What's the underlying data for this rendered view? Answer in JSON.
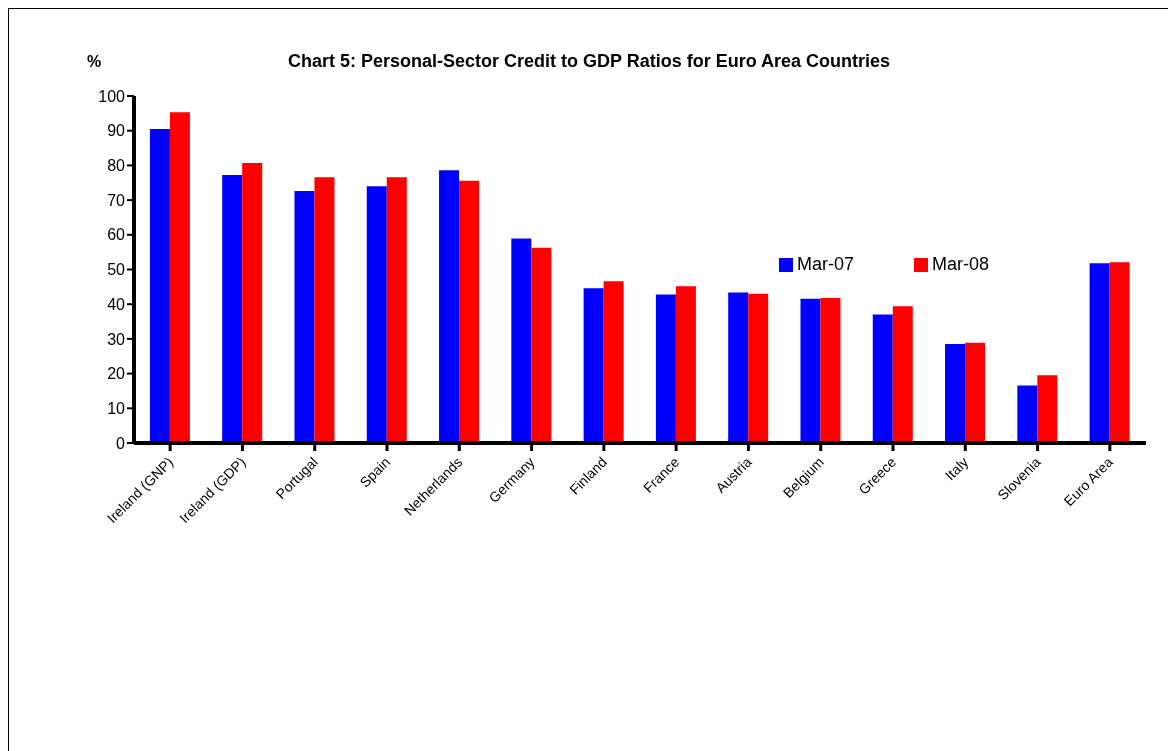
{
  "chart_data": {
    "type": "bar",
    "title": "Chart 5: Personal-Sector Credit to GDP Ratios for Euro Area Countries",
    "ylabel": "%",
    "categories": [
      "Ireland (GNP)",
      "Ireland (GDP)",
      "Portugal",
      "Spain",
      "Netherlands",
      "Germany",
      "Finland",
      "France",
      "Austria",
      "Belgium",
      "Greece",
      "Italy",
      "Slovenia",
      "Euro Area"
    ],
    "series": [
      {
        "name": "Mar-07",
        "color": "#0000ff",
        "values": [
          90.5,
          77.2,
          72.6,
          74.0,
          78.6,
          58.9,
          44.6,
          42.8,
          43.4,
          41.6,
          37.0,
          28.5,
          16.6,
          51.8
        ]
      },
      {
        "name": "Mar-08",
        "color": "#ff0000",
        "values": [
          95.3,
          80.7,
          76.6,
          76.6,
          75.6,
          56.3,
          46.6,
          45.2,
          43.0,
          41.8,
          39.4,
          28.9,
          19.5,
          52.1
        ]
      }
    ],
    "ylim": [
      0,
      100
    ],
    "yticks": [
      0,
      10,
      20,
      30,
      40,
      50,
      60,
      70,
      80,
      90,
      100
    ],
    "grid": false,
    "legend": "right"
  }
}
